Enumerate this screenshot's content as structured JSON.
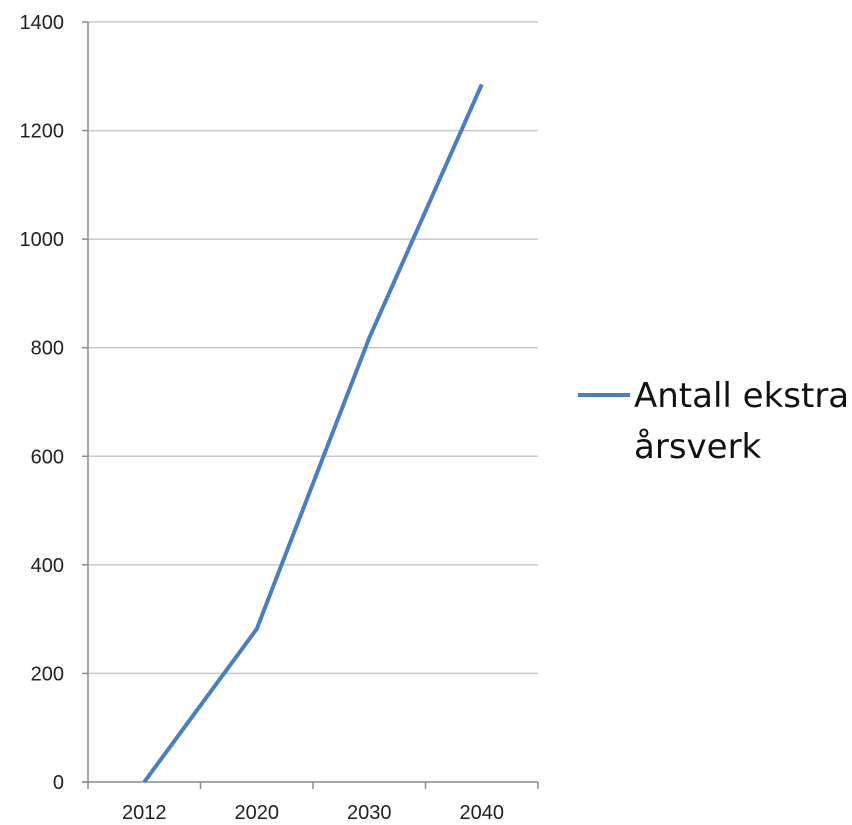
{
  "chart_data": {
    "type": "line",
    "categories": [
      "2012",
      "2020",
      "2030",
      "2040"
    ],
    "series": [
      {
        "name": "Antall ekstra årsverk",
        "values": [
          0,
          282,
          818,
          1285
        ],
        "color": "#4a7ec3"
      }
    ],
    "title": "",
    "xlabel": "",
    "ylabel": "",
    "ylim": [
      0,
      1400
    ],
    "yticks": [
      0,
      200,
      400,
      600,
      800,
      1000,
      1200,
      1400
    ],
    "grid": true,
    "legend": {
      "position": "right",
      "lines": [
        "Antall ekstra",
        "årsverk"
      ]
    },
    "gridline_color": "#c8c8c8",
    "axis_color": "#8a8a8a"
  }
}
